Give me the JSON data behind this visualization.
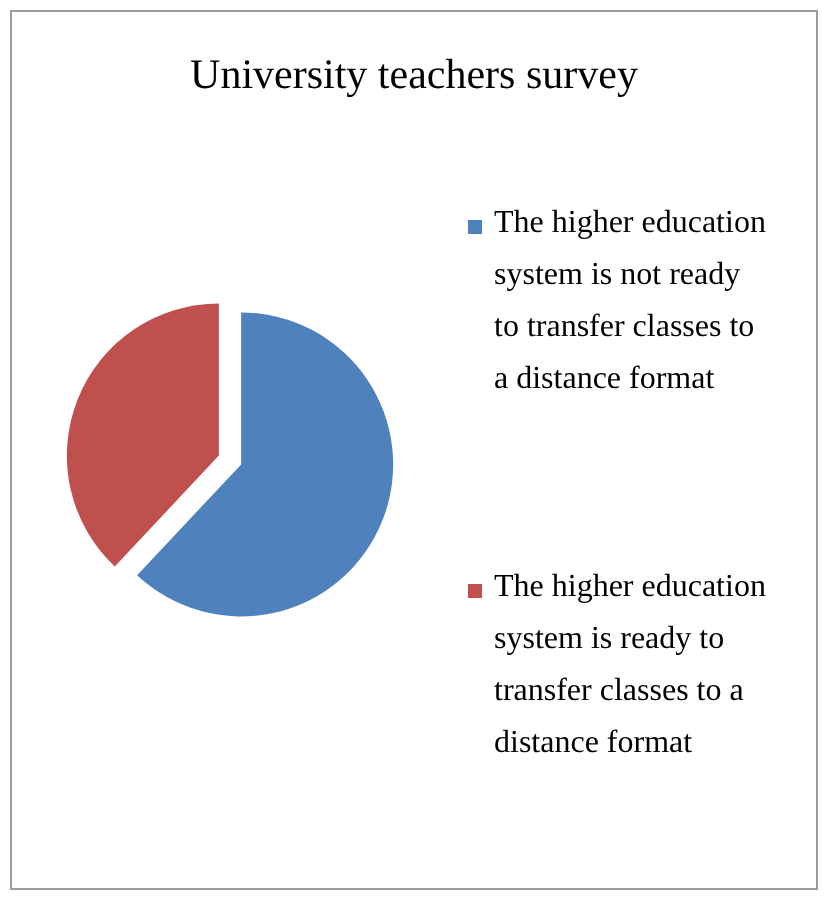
{
  "chart_data": {
    "type": "pie",
    "title": "University teachers survey",
    "categories": [
      "The higher education system is not ready to transfer classes to a distance format",
      "The higher education system is ready to transfer classes to a distance format"
    ],
    "values": [
      62,
      38
    ],
    "colors": [
      "#4f81bd",
      "#c0504d"
    ],
    "legend": "right"
  }
}
